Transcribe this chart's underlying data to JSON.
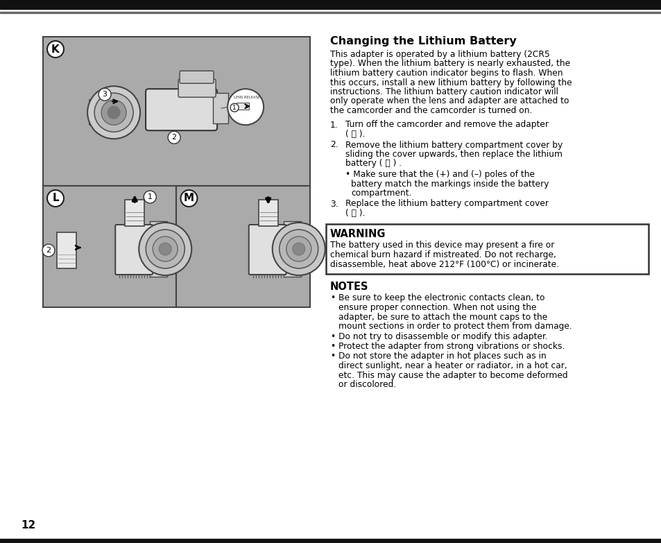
{
  "bg_color": "#ffffff",
  "top_bar_color": "#111111",
  "title": "Changing the Lithium Battery",
  "body_text": [
    "This adapter is operated by a lithium battery (2CR5",
    "type). When the lithium battery is nearly exhausted, the",
    "lithium battery caution indicator begins to flash. When",
    "this occurs, install a new lithium battery by following the",
    "instructions. The lithium battery caution indicator will",
    "only operate when the lens and adapter are attached to",
    "the camcorder and the camcorder is turned on."
  ],
  "warning_title": "WARNING",
  "warning_text": [
    "The battery used in this device may present a fire or",
    "chemical burn hazard if mistreated. Do not recharge,",
    "disassemble, heat above 212°F (100°C) or incinerate."
  ],
  "notes_title": "NOTES",
  "notes_bullets": [
    [
      "Be sure to keep the electronic contacts clean, to",
      "ensure proper connection. When not using the",
      "adapter, be sure to attach the mount caps to the",
      "mount sections in order to protect them from damage."
    ],
    [
      "Do not try to disassemble or modify this adapter."
    ],
    [
      "Protect the adapter from strong vibrations or shocks."
    ],
    [
      "Do not store the adapter in hot places such as in",
      "direct sunlight, near a heater or radiator, in a hot car,",
      "etc. This may cause the adapter to become deformed",
      "or discolored."
    ]
  ],
  "page_number": "12",
  "diagram_bg": "#aaaaaa",
  "diagram_border": "#444444",
  "step1_num": "1.",
  "step1_text": [
    "Turn off the camcorder and remove the adapter",
    "( Ⓚ )."
  ],
  "step2_num": "2.",
  "step2_text": [
    "Remove the lithium battery compartment cover by",
    "sliding the cover upwards, then replace the lithium",
    "battery ( Ⓛ ) ."
  ],
  "step2_bullet": [
    "Make sure that the (+) and (–) poles of the",
    "battery match the markings inside the battery",
    "compartment."
  ],
  "step3_num": "3.",
  "step3_text": [
    "Replace the lithium battery compartment cover",
    "( Ⓜ )."
  ]
}
